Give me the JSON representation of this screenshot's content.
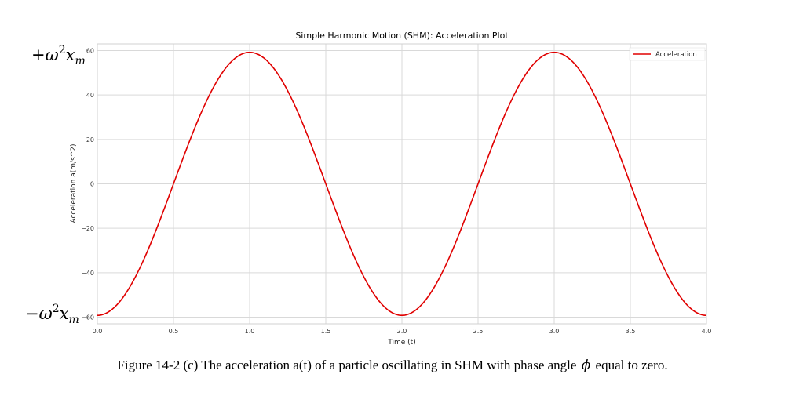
{
  "chart_data": {
    "type": "line",
    "title": "Simple Harmonic Motion (SHM): Acceleration Plot",
    "xlabel": "Time (t)",
    "ylabel": "Acceleration a(m/s^2)",
    "xlim": [
      0,
      4
    ],
    "ylim": [
      -63,
      63
    ],
    "xticks": [
      0,
      0.5,
      1,
      1.5,
      2,
      2.5,
      3,
      3.5,
      4
    ],
    "xtick_labels": [
      "0.0",
      "0.5",
      "1.0",
      "1.5",
      "2.0",
      "2.5",
      "3.0",
      "3.5",
      "4.0"
    ],
    "yticks": [
      60,
      40,
      20,
      0,
      -20,
      -40,
      -60
    ],
    "ytick_labels": [
      "60",
      "40",
      "20",
      "0",
      "−20",
      "−40",
      "−60"
    ],
    "grid": true,
    "legend_position": "top-right",
    "series": [
      {
        "name": "Acceleration",
        "color": "#e00000",
        "function": "a(t) = -59.2 * cos(pi * t)",
        "x": [
          0,
          0.25,
          0.5,
          0.75,
          1,
          1.25,
          1.5,
          1.75,
          2,
          2.25,
          2.5,
          2.75,
          3,
          3.25,
          3.5,
          3.75,
          4
        ],
        "y": [
          -59.2,
          -41.9,
          0,
          41.9,
          59.2,
          41.9,
          0,
          -41.9,
          -59.2,
          -41.9,
          0,
          41.9,
          59.2,
          41.9,
          0,
          -41.9,
          -59.2
        ]
      }
    ],
    "annotations": {
      "max_label": {
        "sign": "+",
        "omega": "ω",
        "power": "2",
        "x": "x",
        "sub": "m"
      },
      "min_label": {
        "sign": "−",
        "omega": "ω",
        "power": "2",
        "x": "x",
        "sub": "m"
      }
    }
  },
  "caption": {
    "before": "Figure 14-2 (c) The acceleration a(t) of a particle oscillating in SHM with phase angle",
    "symbol": "ϕ",
    "after": "equal to zero."
  },
  "colors": {
    "line": "#e00000",
    "grid": "#d9d9d9",
    "frame": "#d0d0d0"
  }
}
